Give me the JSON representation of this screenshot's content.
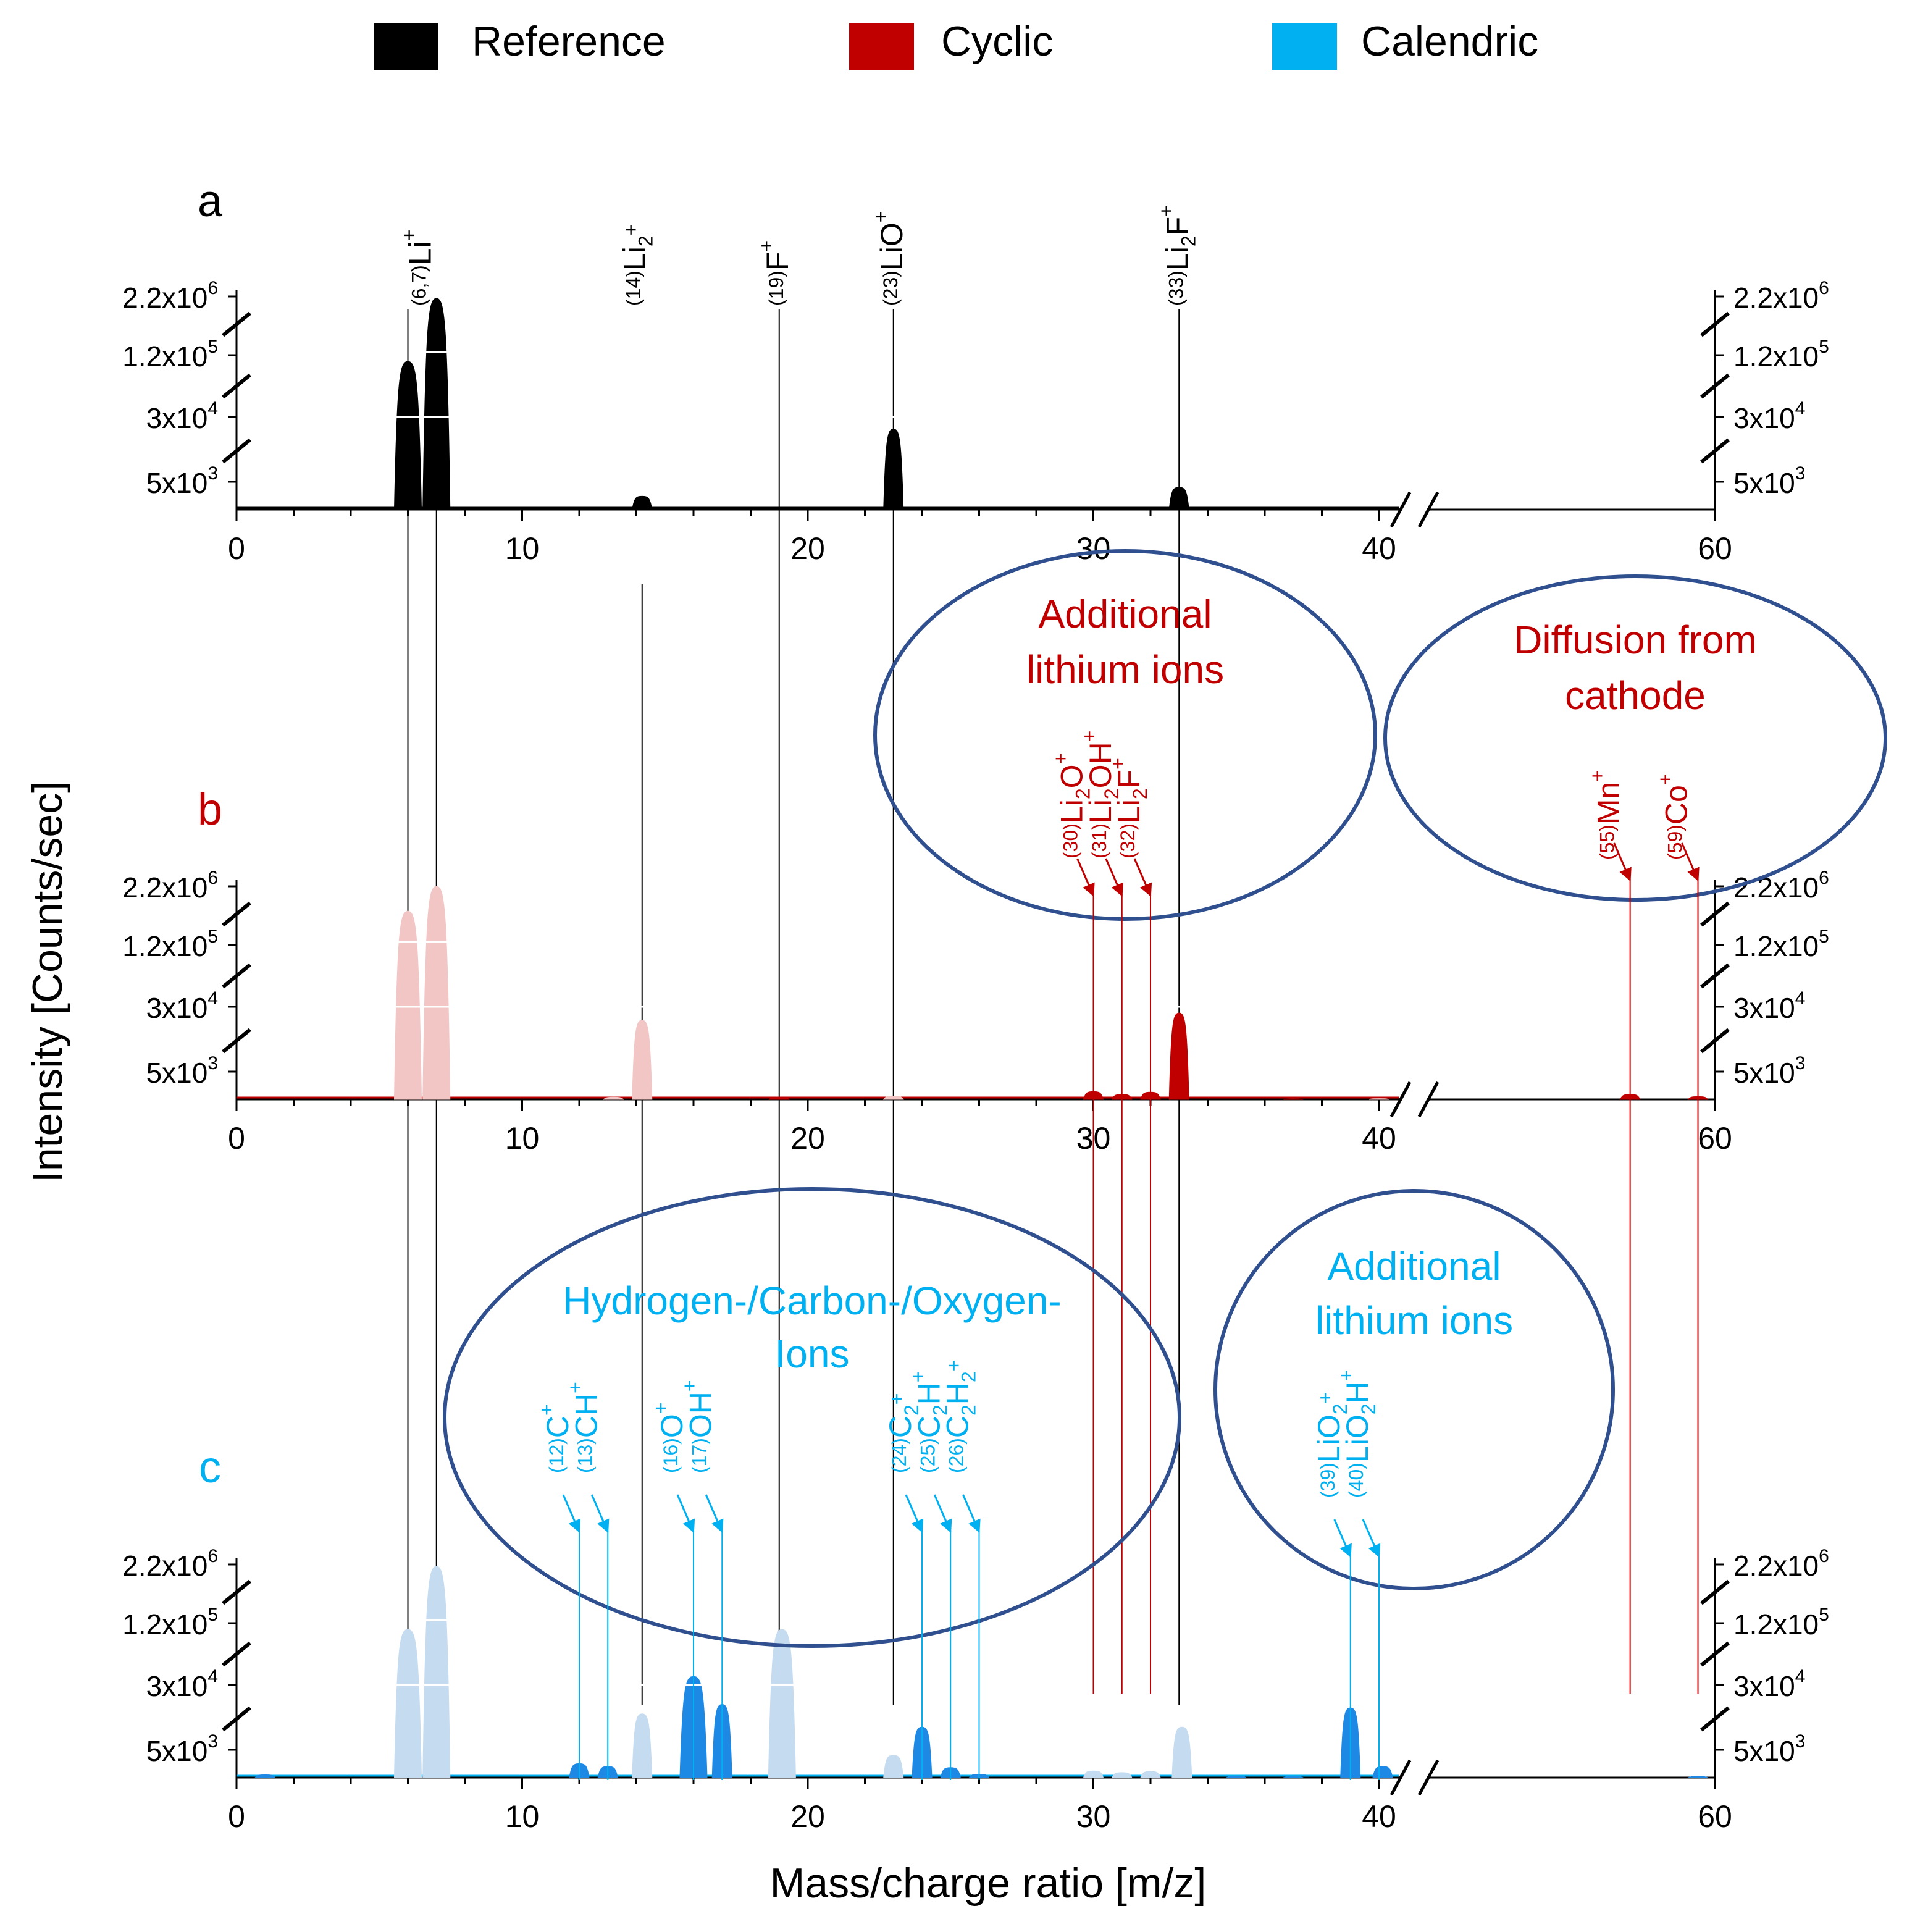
{
  "chart_data": {
    "type": "area",
    "ylabel": "Intensity [Counts/sec]",
    "xlabel": "Mass/charge ratio [m/z]",
    "xlim": [
      0,
      60
    ],
    "xticks": [
      "0",
      "10",
      "20",
      "30",
      "40",
      "60"
    ],
    "axis_break_x": [
      41,
      43
    ],
    "ytick_labels": [
      {
        "base": "2.2x10",
        "exp": "6"
      },
      {
        "base": "1.2x10",
        "exp": "5"
      },
      {
        "base": "3x10",
        "exp": "4"
      },
      {
        "base": "5x10",
        "exp": "3"
      }
    ],
    "legend": [
      {
        "label": "Reference",
        "color": "#000000"
      },
      {
        "label": "Cyclic",
        "color": "#c00000"
      },
      {
        "label": "Calendric",
        "color": "#00b0f0"
      }
    ],
    "panels": [
      {
        "id": "a",
        "label": "a",
        "color": "#000000",
        "light_color": "#000000",
        "series": [
          {
            "name": "Reference",
            "peaks": [
              {
                "x": 6,
                "y": 100000.0,
                "bright": true
              },
              {
                "x": 7,
                "y": 2000000.0,
                "bright": true
              },
              {
                "x": 11,
                "y": 60,
                "bright": true
              },
              {
                "x": 12,
                "y": 50,
                "bright": true
              },
              {
                "x": 13.3,
                "y": 120,
                "bright": true
              },
              {
                "x": 14.2,
                "y": 2400,
                "bright": true
              },
              {
                "x": 19,
                "y": 300,
                "bright": true
              },
              {
                "x": 23,
                "y": 25000.0,
                "bright": true
              },
              {
                "x": 31,
                "y": 80,
                "bright": true
              },
              {
                "x": 32.1,
                "y": 350,
                "bright": true
              },
              {
                "x": 33,
                "y": 4000,
                "bright": true
              },
              {
                "x": 39.2,
                "y": 90,
                "bright": true
              },
              {
                "x": 39.8,
                "y": 200,
                "bright": true
              },
              {
                "x": 40.3,
                "y": 200,
                "bright": true
              },
              {
                "x": 59,
                "y": 40,
                "bright": true
              }
            ]
          }
        ],
        "annotations": [
          {
            "x": 6.5,
            "pre": "(6,7)",
            "main": "Li",
            "sub": "",
            "rest": "",
            "sup": "+"
          },
          {
            "x": 14,
            "pre": "(14)",
            "main": "Li",
            "sub": "2",
            "rest": "",
            "sup": "+"
          },
          {
            "x": 19,
            "pre": "(19)",
            "main": "F",
            "sub": "",
            "rest": "",
            "sup": "+"
          },
          {
            "x": 23,
            "pre": "(23)",
            "main": "LiO",
            "sub": "",
            "rest": "",
            "sup": "+"
          },
          {
            "x": 33,
            "pre": "(33)",
            "main": "Li",
            "sub": "2",
            "rest": "F",
            "sup": "+"
          }
        ]
      },
      {
        "id": "b",
        "label": "b",
        "color": "#c00000",
        "light_color": "#f3c6c6",
        "series": [
          {
            "name": "Cyclic",
            "peaks": [
              {
                "x": 6,
                "y": 600000.0,
                "bright": false
              },
              {
                "x": 7,
                "y": 2200000.0,
                "bright": false
              },
              {
                "x": 13.2,
                "y": 400,
                "bright": false
              },
              {
                "x": 14.2,
                "y": 24000.0,
                "bright": false
              },
              {
                "x": 19,
                "y": 350,
                "bright": true
              },
              {
                "x": 23,
                "y": 600,
                "bright": false
              },
              {
                "x": 30,
                "y": 1400,
                "bright": true
              },
              {
                "x": 31,
                "y": 900,
                "bright": true
              },
              {
                "x": 32,
                "y": 1300,
                "bright": true
              },
              {
                "x": 33,
                "y": 30000.0,
                "bright": true
              },
              {
                "x": 37,
                "y": 100,
                "bright": true
              },
              {
                "x": 40,
                "y": 150,
                "bright": false
              },
              {
                "x": 55,
                "y": 900,
                "bright": true
              },
              {
                "x": 59,
                "y": 500,
                "bright": true
              }
            ]
          }
        ],
        "callouts": [
          {
            "title_lines": [
              "Additional",
              "lithium ions"
            ],
            "labels": [
              {
                "x": 30,
                "pre": "(30)",
                "main": "Li",
                "sub": "2",
                "rest": "O",
                "sup": "+"
              },
              {
                "x": 31,
                "pre": "(31)",
                "main": "Li",
                "sub": "2",
                "rest": "OH",
                "sup": "+"
              },
              {
                "x": 32,
                "pre": "(32)",
                "main": "Li",
                "sub": "2",
                "rest": "F",
                "sup": "+"
              }
            ]
          },
          {
            "title_lines": [
              "Diffusion from",
              "cathode"
            ],
            "labels": [
              {
                "x": 55,
                "pre": "(55)",
                "main": "Mn",
                "sub": "",
                "rest": "",
                "sup": "+"
              },
              {
                "x": 59,
                "pre": "(59)",
                "main": "Co",
                "sub": "",
                "rest": "",
                "sup": "+"
              }
            ]
          }
        ]
      },
      {
        "id": "c",
        "label": "c",
        "color": "#1e88e5",
        "light_color": "#c5dbf0",
        "series": [
          {
            "name": "Calendric",
            "peaks": [
              {
                "x": 1,
                "y": 500,
                "bright": true
              },
              {
                "x": 6,
                "y": 100000.0,
                "bright": false
              },
              {
                "x": 7,
                "y": 2000000.0,
                "bright": false
              },
              {
                "x": 12,
                "y": 2500,
                "bright": true
              },
              {
                "x": 13,
                "y": 2000,
                "bright": true
              },
              {
                "x": 14.2,
                "y": 15000.0,
                "bright": false
              },
              {
                "x": 16,
                "y": 40000.0,
                "bright": true
              },
              {
                "x": 17,
                "y": 20000.0,
                "bright": true
              },
              {
                "x": 19.1,
                "y": 100000.0,
                "bright": false
              },
              {
                "x": 23,
                "y": 4000,
                "bright": false
              },
              {
                "x": 24,
                "y": 10000.0,
                "bright": true
              },
              {
                "x": 25,
                "y": 1800,
                "bright": true
              },
              {
                "x": 26,
                "y": 600,
                "bright": true
              },
              {
                "x": 30,
                "y": 1200,
                "bright": false
              },
              {
                "x": 31,
                "y": 900,
                "bright": false
              },
              {
                "x": 32,
                "y": 1100,
                "bright": false
              },
              {
                "x": 33.1,
                "y": 10000.0,
                "bright": false
              },
              {
                "x": 35,
                "y": 200,
                "bright": true
              },
              {
                "x": 37,
                "y": 150,
                "bright": true
              },
              {
                "x": 39,
                "y": 18000.0,
                "bright": true
              },
              {
                "x": 40.2,
                "y": 2000,
                "bright": true
              },
              {
                "x": 59,
                "y": 200,
                "bright": true
              }
            ]
          }
        ],
        "callouts": [
          {
            "title_lines": [
              "Hydrogen-/Carbon-/Oxygen-",
              "Ions"
            ],
            "labels": [
              {
                "x": 12,
                "pre": "(12)",
                "main": "C",
                "sub": "",
                "rest": "",
                "sup": "+"
              },
              {
                "x": 13,
                "pre": "(13)",
                "main": "CH",
                "sub": "",
                "rest": "",
                "sup": "+"
              },
              {
                "x": 16,
                "pre": "(16)",
                "main": "O",
                "sub": "",
                "rest": "",
                "sup": "+"
              },
              {
                "x": 17,
                "pre": "(17)",
                "main": "OH",
                "sub": "",
                "rest": "",
                "sup": "+"
              },
              {
                "x": 24,
                "pre": "(24)",
                "main": "C",
                "sub": "2",
                "rest": "",
                "sup": "+"
              },
              {
                "x": 25,
                "pre": "(25)",
                "main": "C",
                "sub": "2",
                "rest": "H",
                "sup": "+"
              },
              {
                "x": 26,
                "pre": "(26)",
                "main": "C",
                "sub": "2",
                "rest": "H",
                "sub2": "2",
                "sup": "+"
              }
            ]
          },
          {
            "title_lines": [
              "Additional",
              "lithium ions"
            ],
            "labels": [
              {
                "x": 39,
                "pre": "(39)",
                "main": "LiO",
                "sub": "2",
                "rest": "",
                "sup": "+"
              },
              {
                "x": 40,
                "pre": "(40)",
                "main": "LiO",
                "sub": "2",
                "rest": "H",
                "sup": "+"
              }
            ]
          }
        ]
      }
    ]
  },
  "styles": {
    "ellipse_stroke": "#2f4f8f",
    "callout_b": "#c00000",
    "callout_c": "#00b0f0"
  }
}
